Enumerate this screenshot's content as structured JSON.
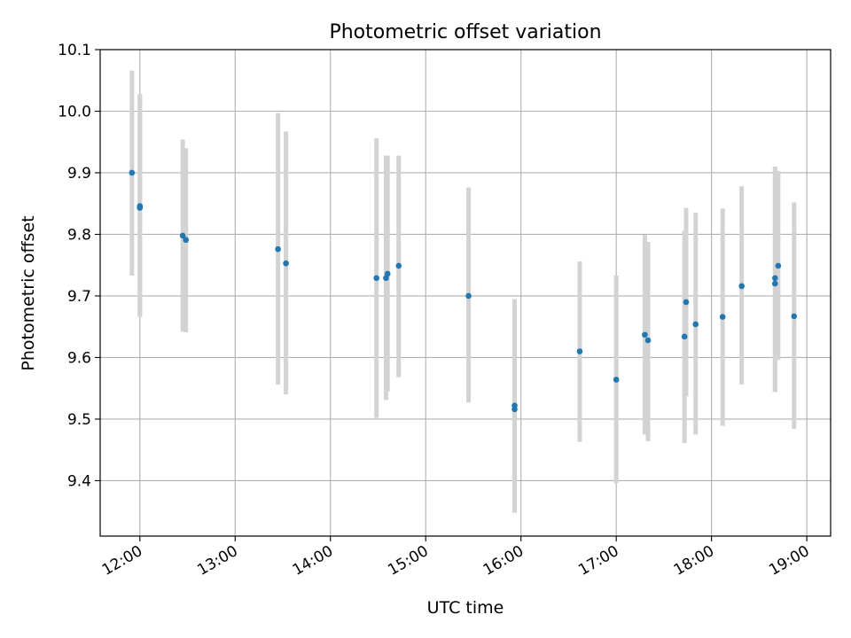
{
  "chart_data": {
    "type": "scatter",
    "title": "Photometric offset variation",
    "xlabel": "UTC time",
    "ylabel": "Photometric offset",
    "x_tick_labels": [
      "12:00",
      "13:00",
      "14:00",
      "15:00",
      "16:00",
      "17:00",
      "18:00",
      "19:00"
    ],
    "y_tick_labels": [
      "9.4",
      "9.5",
      "9.6",
      "9.7",
      "9.8",
      "9.9",
      "10.0",
      "10.1"
    ],
    "y_ticks": [
      9.4,
      9.5,
      9.6,
      9.7,
      9.8,
      9.9,
      10.0,
      10.1
    ],
    "xlim": [
      "11:35",
      "19:15"
    ],
    "ylim": [
      9.31,
      10.1
    ],
    "grid": true,
    "colors": {
      "marker": "#1f77b4",
      "errorbar": "#d3d3d3",
      "grid": "#b0b0b0"
    },
    "points": [
      {
        "time": "11:55",
        "y": 9.9,
        "err_low": 9.733,
        "err_high": 10.066
      },
      {
        "time": "12:00",
        "y": 9.846,
        "err_low": 9.666,
        "err_high": 10.028
      },
      {
        "time": "12:00",
        "y": 9.843,
        "err_low": 9.666,
        "err_high": 10.028
      },
      {
        "time": "12:27",
        "y": 9.798,
        "err_low": 9.642,
        "err_high": 9.954
      },
      {
        "time": "12:29",
        "y": 9.791,
        "err_low": 9.641,
        "err_high": 9.94
      },
      {
        "time": "13:27",
        "y": 9.776,
        "err_low": 9.556,
        "err_high": 9.997
      },
      {
        "time": "13:32",
        "y": 9.753,
        "err_low": 9.54,
        "err_high": 9.967
      },
      {
        "time": "14:29",
        "y": 9.729,
        "err_low": 9.502,
        "err_high": 9.956
      },
      {
        "time": "14:35",
        "y": 9.729,
        "err_low": 9.531,
        "err_high": 9.928
      },
      {
        "time": "14:36",
        "y": 9.736,
        "err_low": 9.545,
        "err_high": 9.928
      },
      {
        "time": "14:43",
        "y": 9.749,
        "err_low": 9.568,
        "err_high": 9.928
      },
      {
        "time": "15:27",
        "y": 9.7,
        "err_low": 9.527,
        "err_high": 9.876
      },
      {
        "time": "15:56",
        "y": 9.522,
        "err_low": 9.348,
        "err_high": 9.695
      },
      {
        "time": "15:56",
        "y": 9.516,
        "err_low": 9.348,
        "err_high": 9.695
      },
      {
        "time": "16:37",
        "y": 9.61,
        "err_low": 9.463,
        "err_high": 9.756
      },
      {
        "time": "17:00",
        "y": 9.564,
        "err_low": 9.396,
        "err_high": 9.733
      },
      {
        "time": "17:18",
        "y": 9.637,
        "err_low": 9.475,
        "err_high": 9.799
      },
      {
        "time": "17:20",
        "y": 9.628,
        "err_low": 9.464,
        "err_high": 9.788
      },
      {
        "time": "17:43",
        "y": 9.634,
        "err_low": 9.461,
        "err_high": 9.806
      },
      {
        "time": "17:44",
        "y": 9.69,
        "err_low": 9.537,
        "err_high": 9.843
      },
      {
        "time": "17:50",
        "y": 9.654,
        "err_low": 9.475,
        "err_high": 9.835
      },
      {
        "time": "18:07",
        "y": 9.666,
        "err_low": 9.489,
        "err_high": 9.842
      },
      {
        "time": "18:19",
        "y": 9.716,
        "err_low": 9.556,
        "err_high": 9.878
      },
      {
        "time": "18:40",
        "y": 9.729,
        "err_low": 9.544,
        "err_high": 9.91
      },
      {
        "time": "18:40",
        "y": 9.72,
        "err_low": 9.544,
        "err_high": 9.905
      },
      {
        "time": "18:42",
        "y": 9.749,
        "err_low": 9.596,
        "err_high": 9.903
      },
      {
        "time": "18:52",
        "y": 9.667,
        "err_low": 9.484,
        "err_high": 9.852
      }
    ]
  }
}
